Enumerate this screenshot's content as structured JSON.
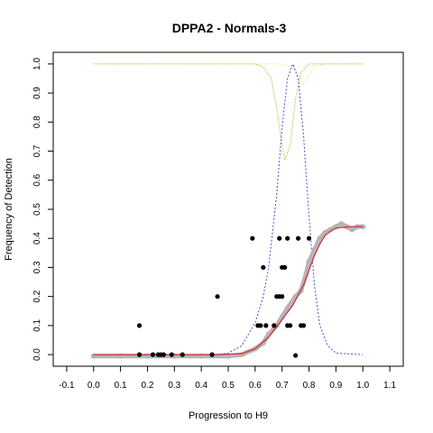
{
  "chart_data": {
    "type": "scatter",
    "title": "DPPA2 - Normals-3",
    "xlabel": "Progression to H9",
    "ylabel": "Frequency of Detection",
    "xlim": [
      -0.15,
      1.15
    ],
    "ylim": [
      -0.04,
      1.04
    ],
    "x_ticks": [
      "-0.1",
      "0.0",
      "0.1",
      "0.2",
      "0.3",
      "0.4",
      "0.5",
      "0.6",
      "0.7",
      "0.8",
      "0.9",
      "1.0",
      "1.1"
    ],
    "y_ticks": [
      "0.0",
      "0.1",
      "0.2",
      "0.3",
      "0.4",
      "0.5",
      "0.6",
      "0.7",
      "0.8",
      "0.9",
      "1.0"
    ],
    "grid": false,
    "colors": {
      "points": "#000000",
      "smoothed": "#b5b5b5",
      "fit": "#e03030",
      "fit_underlay": "#5555cc",
      "density": "#4b4bd8",
      "green_curve": "#7fe02a",
      "yellow_curve": "#ecec70"
    },
    "series": [
      {
        "kind": "points",
        "x": [
          0.17,
          0.17,
          0.22,
          0.24,
          0.25,
          0.26,
          0.29,
          0.33,
          0.44,
          0.46,
          0.59,
          0.61,
          0.62,
          0.63,
          0.64,
          0.67,
          0.68,
          0.69,
          0.69,
          0.7,
          0.7,
          0.71,
          0.72,
          0.72,
          0.73,
          0.75,
          0.76,
          0.77,
          0.78,
          0.8
        ],
        "y": [
          0.0,
          0.1,
          0.0,
          0.0,
          0.0,
          0.0,
          0.0,
          0.0,
          0.0,
          0.2,
          0.4,
          0.1,
          0.1,
          0.3,
          0.1,
          0.1,
          0.2,
          0.2,
          0.4,
          0.3,
          0.2,
          0.3,
          0.1,
          0.4,
          0.1,
          -0.003,
          0.4,
          0.1,
          0.1,
          0.4
        ]
      },
      {
        "kind": "smoothed",
        "x": [
          0.0,
          0.1,
          0.2,
          0.3,
          0.4,
          0.5,
          0.55,
          0.6,
          0.63,
          0.65,
          0.68,
          0.7,
          0.72,
          0.75,
          0.77,
          0.79,
          0.8,
          0.82,
          0.84,
          0.86,
          0.88,
          0.9,
          0.92,
          0.94,
          0.96,
          0.98,
          1.0
        ],
        "y": [
          -0.005,
          -0.005,
          -0.005,
          -0.005,
          -0.005,
          -0.005,
          0.0,
          0.02,
          0.04,
          0.07,
          0.1,
          0.13,
          0.16,
          0.2,
          0.22,
          0.28,
          0.32,
          0.36,
          0.4,
          0.42,
          0.43,
          0.44,
          0.45,
          0.44,
          0.43,
          0.44,
          0.44
        ]
      },
      {
        "kind": "fit_line",
        "x": [
          0.0,
          0.45,
          0.55,
          0.6,
          0.65,
          0.7,
          0.74,
          0.78,
          0.8,
          0.82,
          0.84,
          0.86,
          0.88,
          0.9,
          0.95,
          1.0
        ],
        "y": [
          0.0,
          0.0,
          0.003,
          0.02,
          0.06,
          0.12,
          0.17,
          0.24,
          0.29,
          0.34,
          0.38,
          0.41,
          0.425,
          0.435,
          0.44,
          0.44
        ]
      },
      {
        "kind": "density",
        "x": [
          0.0,
          0.45,
          0.5,
          0.55,
          0.6,
          0.63,
          0.65,
          0.68,
          0.7,
          0.72,
          0.74,
          0.76,
          0.78,
          0.8,
          0.82,
          0.84,
          0.87,
          0.9,
          1.0
        ],
        "y": [
          0.0,
          0.0,
          0.005,
          0.03,
          0.11,
          0.2,
          0.3,
          0.55,
          0.78,
          0.95,
          1.0,
          0.95,
          0.75,
          0.48,
          0.24,
          0.1,
          0.03,
          0.005,
          0.0
        ]
      },
      {
        "kind": "green_curve",
        "x": [
          0.0,
          0.6,
          0.63,
          0.66,
          0.68,
          0.7,
          0.71,
          0.73,
          0.75,
          0.77,
          0.8,
          0.85,
          1.0
        ],
        "y": [
          1.0,
          1.0,
          0.99,
          0.95,
          0.85,
          0.72,
          0.67,
          0.72,
          0.88,
          0.97,
          1.0,
          1.0,
          1.0
        ]
      },
      {
        "kind": "yellow_curve",
        "x": [
          0.0,
          0.7,
          0.74,
          0.76,
          0.78,
          0.8,
          0.82,
          0.86,
          1.0
        ],
        "y": [
          1.0,
          1.0,
          0.99,
          0.96,
          0.93,
          0.96,
          0.99,
          1.0,
          1.0
        ]
      }
    ]
  }
}
